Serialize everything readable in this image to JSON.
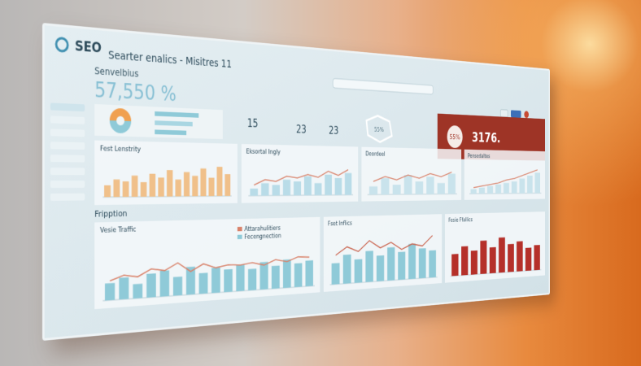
{
  "header": {
    "logo": "SEO",
    "title": "Searter enalics - Misitres 11"
  },
  "summary": {
    "label": "Senvelbius",
    "value": "57,550 %"
  },
  "stats": [
    "15",
    "23",
    "23"
  ],
  "hexagon": "55%",
  "highlight": {
    "percent": "55%",
    "value": "3176."
  },
  "section": "Fripption",
  "charts": [
    {
      "title": "Fest Lenstrity",
      "color": "#f0c08a",
      "bars": [
        30,
        45,
        40,
        55,
        38,
        60,
        50,
        70,
        45,
        65,
        55,
        75,
        50,
        80,
        60
      ]
    },
    {
      "title": "Eksortal Ingly",
      "color": "#b9dce8",
      "line_color": "#d9826a",
      "bars": [
        20,
        35,
        30,
        45,
        40,
        55,
        35,
        60,
        50,
        65
      ],
      "line": [
        30,
        45,
        40,
        55,
        50,
        60,
        52,
        70,
        58,
        75
      ]
    },
    {
      "title": "Deordeel",
      "color": "#c9e3ec",
      "line_color": "#d9826a",
      "bars": [
        25,
        50,
        30,
        60,
        40,
        55,
        35,
        65
      ],
      "line": [
        40,
        55,
        45,
        60,
        50,
        65,
        55,
        70
      ]
    },
    {
      "title": "Pensedaltes",
      "color": "#c9e3ec",
      "line_color": "#d9826a",
      "bars": [
        15,
        20,
        25,
        30,
        35,
        40,
        50,
        60,
        70
      ],
      "line": [
        20,
        25,
        30,
        35,
        45,
        50,
        60,
        70,
        80
      ]
    },
    {
      "title": "Vesie Traffic",
      "legend": [
        "Attarahulitiers",
        "Fecengnection"
      ],
      "color": "#8fcad8",
      "line_color": "#d9826a",
      "bars": [
        35,
        45,
        30,
        50,
        55,
        40,
        60,
        45,
        55,
        50,
        58,
        48,
        62,
        52,
        65,
        55,
        60
      ],
      "line": [
        40,
        50,
        45,
        60,
        55,
        70,
        50,
        65,
        55,
        60,
        58,
        62,
        55,
        66,
        60,
        70,
        68
      ]
    },
    {
      "title": "Fset Inflics",
      "color": "#8fcad8",
      "line_color": "#c9604a",
      "bars": [
        40,
        55,
        45,
        60,
        50,
        65,
        55,
        70,
        60,
        55
      ],
      "line": [
        55,
        70,
        60,
        80,
        65,
        75,
        60,
        70,
        65,
        85
      ]
    },
    {
      "title": "Fesie Ffallics",
      "color": "#b5302a",
      "bars": [
        45,
        60,
        50,
        70,
        55,
        75,
        60,
        65,
        50,
        55
      ]
    }
  ]
}
